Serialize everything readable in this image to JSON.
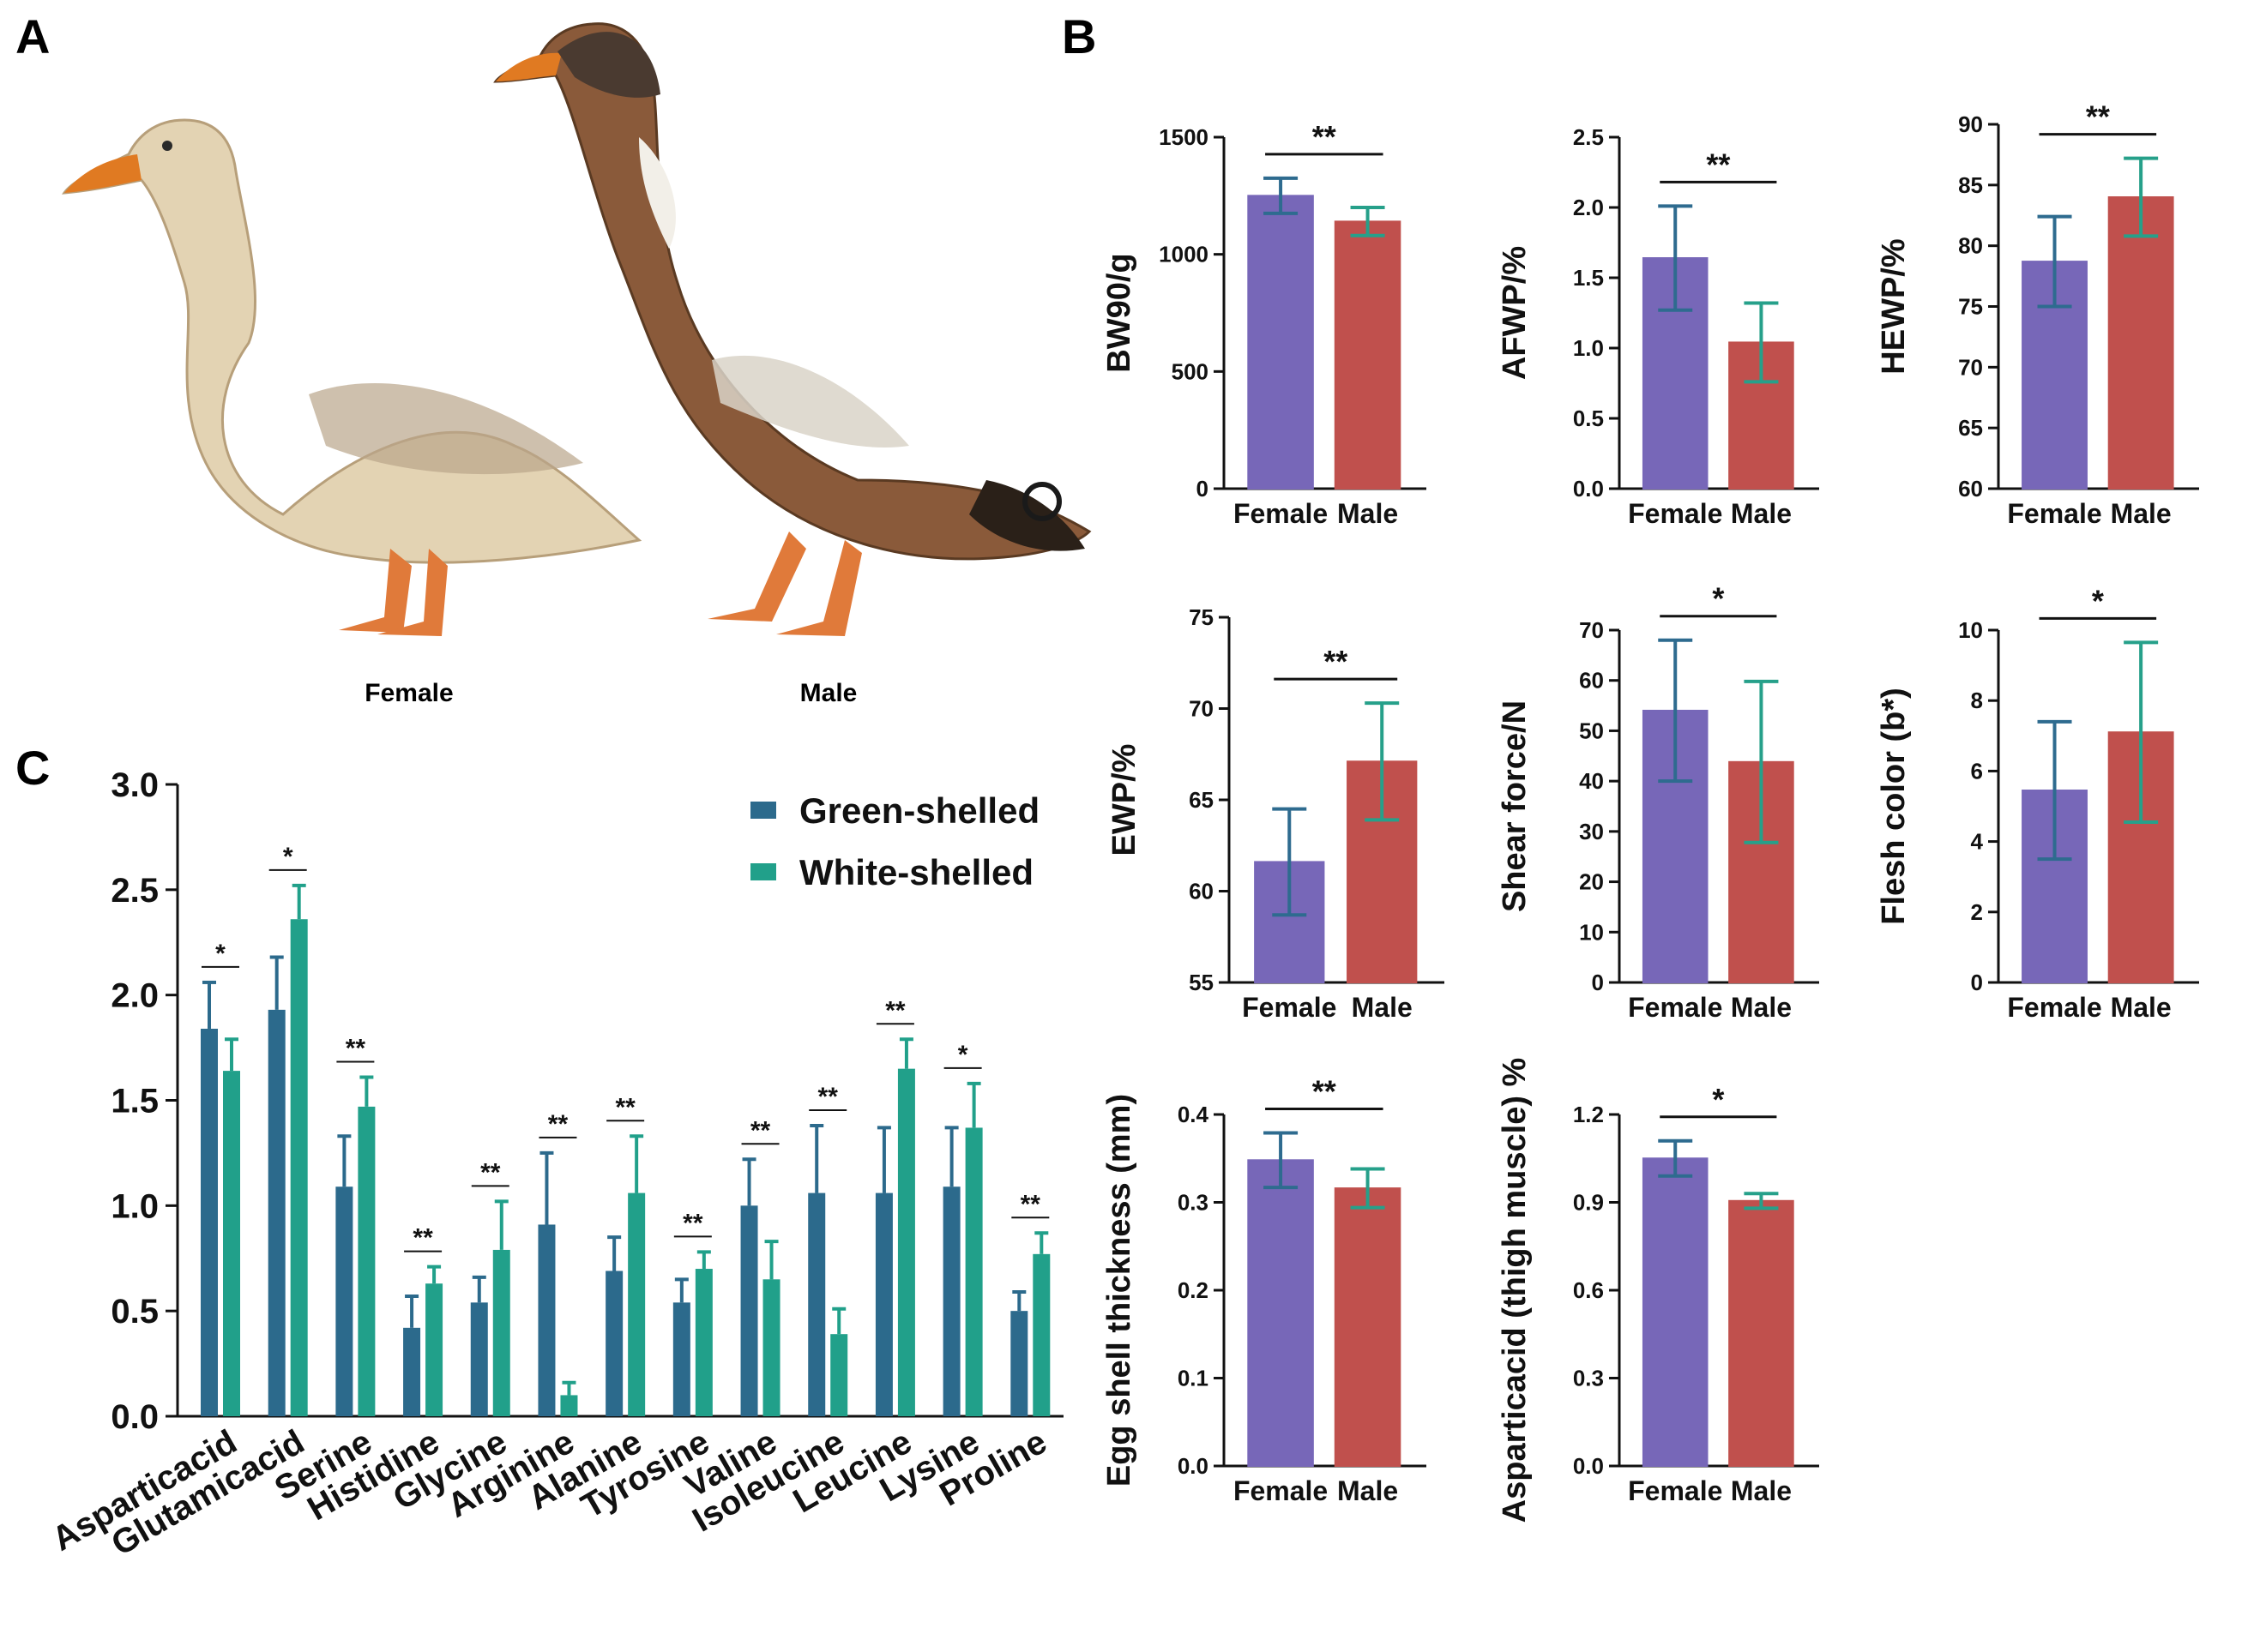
{
  "panels": {
    "a": "A",
    "b": "B",
    "c": "C"
  },
  "photo": {
    "female_label": "Female",
    "male_label": "Male"
  },
  "colors": {
    "female": "#7767b8",
    "male": "#c0504d",
    "female_err": "#2e6b8f",
    "male_err": "#26a08a",
    "green_shelled": "#2c6a8c",
    "white_shelled": "#21a08a"
  },
  "chart_data": [
    {
      "id": "bw90",
      "type": "bar",
      "ylabel": "BW90/g",
      "ylim": [
        0,
        1500
      ],
      "ticks": [
        0,
        500,
        1000,
        1500
      ],
      "tick_labels": [
        "0",
        "500",
        "1000",
        "1500"
      ],
      "categories": [
        "Female",
        "Male"
      ],
      "values": [
        1250,
        1140
      ],
      "errors": [
        75,
        60
      ],
      "sig": "**"
    },
    {
      "id": "afwp",
      "type": "bar",
      "ylabel": "AFWP/%",
      "ylim": [
        0,
        2.5
      ],
      "ticks": [
        0,
        0.5,
        1,
        1.5,
        2,
        2.5
      ],
      "tick_labels": [
        "0.0",
        "0.5",
        "1.0",
        "1.5",
        "2.0",
        "2.5"
      ],
      "categories": [
        "Female",
        "Male"
      ],
      "values": [
        1.64,
        1.04
      ],
      "errors": [
        0.37,
        0.28
      ],
      "sig": "**"
    },
    {
      "id": "hewp",
      "type": "bar",
      "ylabel": "HEWP/%",
      "ylim": [
        60,
        90
      ],
      "ticks": [
        60,
        65,
        70,
        75,
        80,
        85,
        90
      ],
      "tick_labels": [
        "60",
        "65",
        "70",
        "75",
        "80",
        "85",
        "90"
      ],
      "categories": [
        "Female",
        "Male"
      ],
      "values": [
        78.7,
        84.0
      ],
      "errors": [
        3.7,
        3.2
      ],
      "sig": "**"
    },
    {
      "id": "ewp",
      "type": "bar",
      "ylabel": "EWP/%",
      "ylim": [
        55,
        75
      ],
      "ticks": [
        55,
        60,
        65,
        70,
        75
      ],
      "tick_labels": [
        "55",
        "60",
        "65",
        "70",
        "75"
      ],
      "categories": [
        "Female",
        "Male"
      ],
      "values": [
        61.6,
        67.1
      ],
      "errors": [
        2.9,
        3.2
      ],
      "sig": "**"
    },
    {
      "id": "shear",
      "type": "bar",
      "ylabel": "Shear force/N",
      "ylim": [
        0,
        70
      ],
      "ticks": [
        0,
        10,
        20,
        30,
        40,
        50,
        60,
        70
      ],
      "tick_labels": [
        "0",
        "10",
        "20",
        "30",
        "40",
        "50",
        "60",
        "70"
      ],
      "categories": [
        "Female",
        "Male"
      ],
      "values": [
        54.0,
        43.8
      ],
      "errors": [
        14.0,
        16.0
      ],
      "sig": "*"
    },
    {
      "id": "flesh",
      "type": "bar",
      "ylabel": "Flesh color (b*)",
      "ylim": [
        0,
        10
      ],
      "ticks": [
        0,
        2,
        4,
        6,
        8,
        10
      ],
      "tick_labels": [
        "0",
        "2",
        "4",
        "6",
        "8",
        "10"
      ],
      "categories": [
        "Female",
        "Male"
      ],
      "values": [
        5.45,
        7.1
      ],
      "errors": [
        1.95,
        2.55
      ],
      "sig": "*"
    },
    {
      "id": "eggshell",
      "type": "bar",
      "ylabel": "Egg shell thickness (mm)",
      "ylim": [
        0,
        0.4
      ],
      "ticks": [
        0,
        0.1,
        0.2,
        0.3,
        0.4
      ],
      "tick_labels": [
        "0.0",
        "0.1",
        "0.2",
        "0.3",
        "0.4"
      ],
      "categories": [
        "Female",
        "Male"
      ],
      "values": [
        0.348,
        0.316
      ],
      "errors": [
        0.031,
        0.022
      ],
      "sig": "**"
    },
    {
      "id": "asp",
      "type": "bar",
      "ylabel": "Asparticacid (thigh muscle) %",
      "ylim": [
        0,
        1.2
      ],
      "ticks": [
        0,
        0.3,
        0.6,
        0.9,
        1.2
      ],
      "tick_labels": [
        "0.0",
        "0.3",
        "0.6",
        "0.9",
        "1.2"
      ],
      "categories": [
        "Female",
        "Male"
      ],
      "values": [
        1.05,
        0.905
      ],
      "errors": [
        0.06,
        0.025
      ],
      "sig": "*"
    },
    {
      "id": "amino",
      "type": "bar",
      "ylim": [
        0,
        3.0
      ],
      "ticks": [
        0,
        0.5,
        1,
        1.5,
        2,
        2.5,
        3
      ],
      "tick_labels": [
        "0.0",
        "0.5",
        "1.0",
        "1.5",
        "2.0",
        "2.5",
        "3.0"
      ],
      "categories": [
        "Asparticacid",
        "Glutamicacid",
        "Serine",
        "Histidine",
        "Glycine",
        "Arginine",
        "Alanine",
        "Tyrosine",
        "Valine",
        "Isoleucine",
        "Leucine",
        "Lysine",
        "Proline"
      ],
      "series": [
        {
          "name": "Green-shelled",
          "values": [
            1.84,
            1.93,
            1.09,
            0.42,
            0.54,
            0.91,
            0.69,
            0.54,
            1.0,
            1.06,
            1.06,
            1.09,
            0.5
          ],
          "errors": [
            0.22,
            0.25,
            0.24,
            0.15,
            0.12,
            0.34,
            0.16,
            0.11,
            0.22,
            0.32,
            0.31,
            0.28,
            0.09
          ]
        },
        {
          "name": "White-shelled",
          "values": [
            1.64,
            2.36,
            1.47,
            0.63,
            0.79,
            0.1,
            1.06,
            0.7,
            0.65,
            0.39,
            1.65,
            1.37,
            0.77
          ],
          "errors": [
            0.15,
            0.16,
            0.14,
            0.08,
            0.23,
            0.06,
            0.27,
            0.08,
            0.18,
            0.12,
            0.14,
            0.21,
            0.1
          ]
        }
      ],
      "sig": [
        "*",
        "*",
        "**",
        "**",
        "**",
        "**",
        "**",
        "**",
        "**",
        "**",
        "**",
        "*",
        "**"
      ],
      "legend": "top-right"
    }
  ]
}
